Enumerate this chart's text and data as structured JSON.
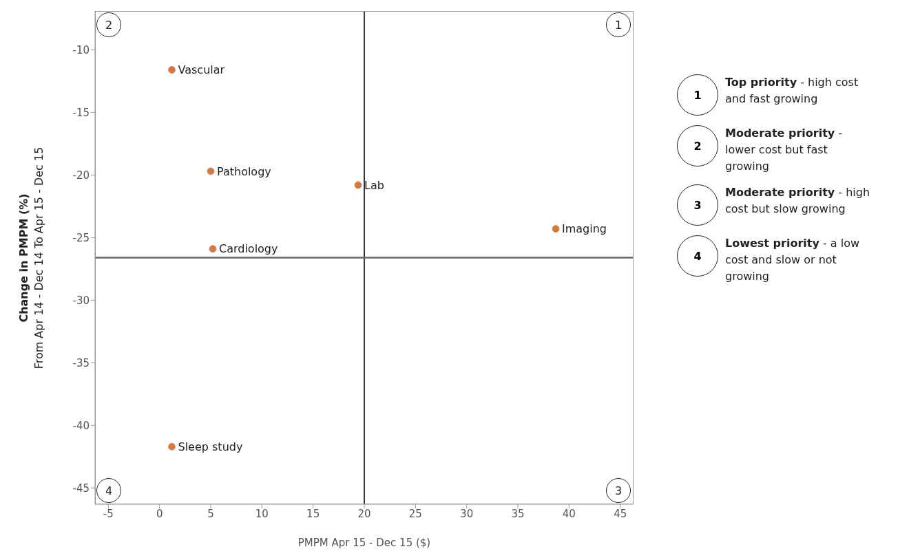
{
  "chart_data": {
    "type": "scatter",
    "xlabel": "PMPM Apr 15 - Dec 15 ($)",
    "ylabel": "Change in PMPM (%)\nFrom Apr 14 - Dec 14  To Apr 15 - Dec 15",
    "x": [
      1.2,
      5.0,
      19.4,
      38.7,
      5.2,
      1.2
    ],
    "series": [
      {
        "color": "#e8742a",
        "values": [
          -11.6,
          -19.7,
          -20.8,
          -24.3,
          -25.9,
          -41.7
        ]
      }
    ],
    "marker": "circle",
    "xlim": [
      -6.3,
      46.3
    ],
    "xticks": [
      -5,
      0,
      5,
      10,
      15,
      20,
      25,
      30,
      35,
      40,
      45
    ],
    "ylim": [
      -46.3,
      -6.9
    ],
    "yticks": [
      -10,
      -15,
      -20,
      -25,
      -30,
      -35,
      -40,
      -45
    ],
    "ref_lines": [
      {
        "axis": "x",
        "value": 20,
        "color": "#333333"
      },
      {
        "axis": "y",
        "value": -26.6,
        "color": "#666666"
      }
    ],
    "annotations": [
      "1",
      "2",
      "3",
      "4",
      "Top priority - high cost and fast growing",
      "Moderate priority - lower cost but fast growing",
      "Moderate priority - high cost but slow growing",
      "Lowest priority - a low cost and slow or not growing",
      {
        "text": "Vascular",
        "x": 1.2,
        "y": -11.6
      },
      {
        "text": "Pathology",
        "x": 5.0,
        "y": -19.7
      },
      {
        "text": "Lab",
        "x": 19.4,
        "y": -20.8
      },
      {
        "text": "Imaging",
        "x": 38.7,
        "y": -24.3
      },
      {
        "text": "Cardiology",
        "x": 5.2,
        "y": -25.9
      },
      {
        "text": "Sleep study",
        "x": 1.2,
        "y": -41.7
      }
    ]
  }
}
